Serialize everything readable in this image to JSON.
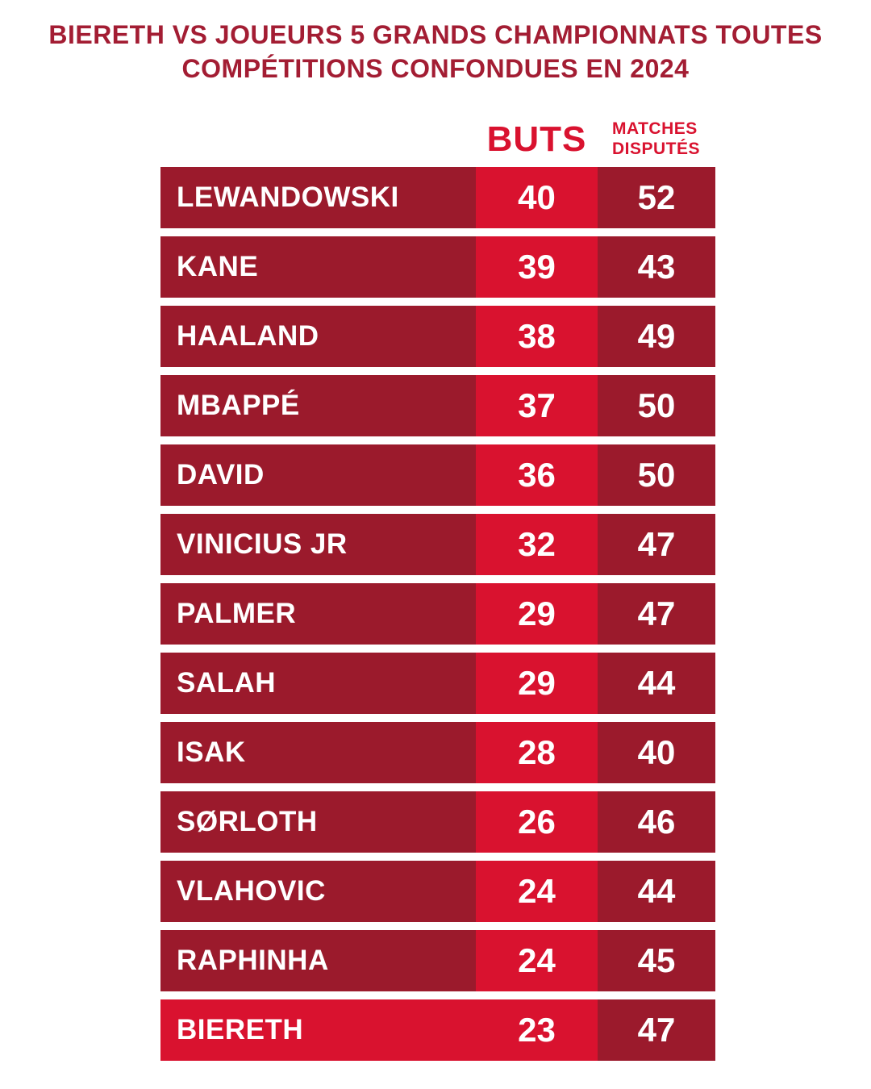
{
  "page": {
    "title_line1": "BIERETH VS JOUEURS 5 GRANDS CHAMPIONNATS TOUTES",
    "title_line2": "COMPÉTITIONS CONFONDUES EN 2024"
  },
  "headers": {
    "goals": "BUTS",
    "matches_line1": "MATCHES",
    "matches_line2": "DISPUTÉS"
  },
  "colors": {
    "row_maroon": "#9B1A2C",
    "bright_red": "#D9122F",
    "title_red": "#A31D33",
    "text_white": "#FFFFFF",
    "background": "#FFFFFF"
  },
  "chart_data": {
    "type": "table",
    "title": "BIERETH VS JOUEURS 5 GRANDS CHAMPIONNATS TOUTES COMPÉTITIONS CONFONDUES EN 2024",
    "columns": [
      "BUTS",
      "MATCHES DISPUTÉS"
    ],
    "highlighted_player": "BIERETH",
    "players": [
      {
        "name": "LEWANDOWSKI",
        "buts": 40,
        "matches": 52,
        "highlight": false
      },
      {
        "name": "KANE",
        "buts": 39,
        "matches": 43,
        "highlight": false
      },
      {
        "name": "HAALAND",
        "buts": 38,
        "matches": 49,
        "highlight": false
      },
      {
        "name": "MBAPPÉ",
        "buts": 37,
        "matches": 50,
        "highlight": false
      },
      {
        "name": "DAVID",
        "buts": 36,
        "matches": 50,
        "highlight": false
      },
      {
        "name": "VINICIUS JR",
        "buts": 32,
        "matches": 47,
        "highlight": false
      },
      {
        "name": "PALMER",
        "buts": 29,
        "matches": 47,
        "highlight": false
      },
      {
        "name": "SALAH",
        "buts": 29,
        "matches": 44,
        "highlight": false
      },
      {
        "name": "ISAK",
        "buts": 28,
        "matches": 40,
        "highlight": false
      },
      {
        "name": "SØRLOTH",
        "buts": 26,
        "matches": 46,
        "highlight": false
      },
      {
        "name": "VLAHOVIC",
        "buts": 24,
        "matches": 44,
        "highlight": false
      },
      {
        "name": "RAPHINHA",
        "buts": 24,
        "matches": 45,
        "highlight": false
      },
      {
        "name": "BIERETH",
        "buts": 23,
        "matches": 47,
        "highlight": true
      }
    ]
  }
}
